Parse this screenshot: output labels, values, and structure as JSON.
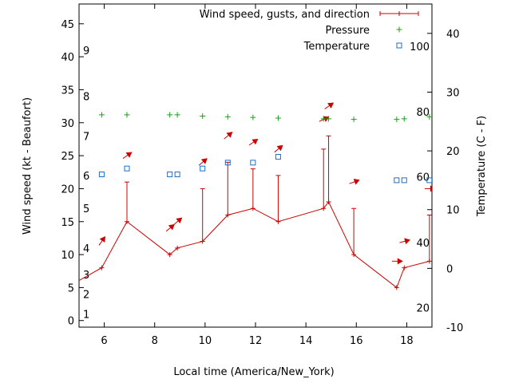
{
  "chart_data": {
    "type": "line",
    "xlabel": "Local time (America/New_York)",
    "ylabel": "Wind speed (kt - Beaufort)",
    "y2label": "Temperature (C - F)",
    "xlim": [
      5,
      19
    ],
    "ylim": [
      -1,
      48
    ],
    "y2lim": [
      -10,
      45
    ],
    "x_ticks": [
      "6",
      "8",
      "10",
      "12",
      "14",
      "16",
      "18"
    ],
    "x_tick_values": [
      6,
      8,
      10,
      12,
      14,
      16,
      18
    ],
    "y_ticks": [
      "0",
      "5",
      "10",
      "15",
      "20",
      "25",
      "30",
      "35",
      "40",
      "45"
    ],
    "y_tick_values": [
      0,
      5,
      10,
      15,
      20,
      25,
      30,
      35,
      40,
      45
    ],
    "y2_ticks": [
      "-10",
      "0",
      "10",
      "20",
      "30",
      "40"
    ],
    "y2_tick_values": [
      -10,
      0,
      10,
      20,
      30,
      40
    ],
    "beaufort": [
      {
        "label": "1",
        "y": 1
      },
      {
        "label": "2",
        "y": 4
      },
      {
        "label": "3",
        "y": 7
      },
      {
        "label": "4",
        "y": 11
      },
      {
        "label": "5",
        "y": 17
      },
      {
        "label": "6",
        "y": 22
      },
      {
        "label": "7",
        "y": 28
      },
      {
        "label": "8",
        "y": 34
      },
      {
        "label": "9",
        "y": 41
      }
    ],
    "fahrenheit": [
      {
        "label": "20",
        "y2": -6.7
      },
      {
        "label": "40",
        "y2": 4.4
      },
      {
        "label": "60",
        "y2": 15.6
      },
      {
        "label": "80",
        "y2": 26.7
      },
      {
        "label": "100",
        "y2": 37.8
      }
    ],
    "legend": {
      "position": "top-right",
      "entries": [
        {
          "label": "Wind speed, gusts, and direction",
          "color": "#cc0000"
        },
        {
          "label": "Pressure",
          "color": "#1aa01a"
        },
        {
          "label": "Temperature",
          "color": "#1a6ecc"
        }
      ]
    },
    "wind_speed": {
      "x": [
        4.5,
        5.9,
        6.9,
        8.6,
        8.9,
        9.9,
        10.9,
        11.9,
        12.9,
        14.7,
        14.9,
        15.9,
        17.6,
        17.9,
        18.9
      ],
      "y": [
        5,
        8,
        15,
        10,
        11,
        12,
        16,
        17,
        15,
        17,
        18,
        10,
        5,
        8,
        9
      ]
    },
    "gusts": [
      {
        "x": 6.9,
        "y": 21
      },
      {
        "x": 9.9,
        "y": 20
      },
      {
        "x": 10.9,
        "y": 24
      },
      {
        "x": 11.9,
        "y": 23
      },
      {
        "x": 12.9,
        "y": 22
      },
      {
        "x": 14.7,
        "y": 26
      },
      {
        "x": 14.9,
        "y": 28
      },
      {
        "x": 15.9,
        "y": 17
      },
      {
        "x": 18.9,
        "y": 16
      }
    ],
    "direction_arrows": [
      {
        "x": 5.9,
        "y": 12,
        "angle": -55
      },
      {
        "x": 6.9,
        "y": 25,
        "angle": -35
      },
      {
        "x": 8.6,
        "y": 14,
        "angle": -40
      },
      {
        "x": 8.9,
        "y": 15,
        "angle": -40
      },
      {
        "x": 9.9,
        "y": 24,
        "angle": -40
      },
      {
        "x": 10.9,
        "y": 28,
        "angle": -40
      },
      {
        "x": 11.9,
        "y": 27,
        "angle": -35
      },
      {
        "x": 12.9,
        "y": 26,
        "angle": -40
      },
      {
        "x": 14.7,
        "y": 30.5,
        "angle": -25
      },
      {
        "x": 14.9,
        "y": 32.5,
        "angle": -35
      },
      {
        "x": 15.9,
        "y": 21,
        "angle": -20
      },
      {
        "x": 17.6,
        "y": 9,
        "angle": 0
      },
      {
        "x": 17.9,
        "y": 12,
        "angle": -15
      },
      {
        "x": 18.9,
        "y": 20,
        "angle": 0
      }
    ],
    "pressure": {
      "x": [
        5.9,
        6.9,
        8.6,
        8.9,
        9.9,
        10.9,
        11.9,
        12.9,
        14.7,
        14.9,
        15.9,
        17.6,
        17.9,
        18.9
      ],
      "y": [
        31.2,
        31.2,
        31.2,
        31.2,
        31.0,
        30.9,
        30.8,
        30.7,
        30.6,
        30.6,
        30.5,
        30.5,
        30.6,
        30.9
      ]
    },
    "temperature": {
      "x": [
        5.9,
        6.9,
        8.6,
        8.9,
        9.9,
        10.9,
        11.9,
        12.9,
        17.6,
        17.9,
        18.9
      ],
      "y2": [
        16,
        17,
        16,
        16,
        17,
        18,
        18,
        19,
        15,
        15,
        15
      ]
    },
    "grid": false
  },
  "colors": {
    "wind": "#cc0000",
    "pressure": "#1aa01a",
    "temperature": "#1a6ecc"
  }
}
